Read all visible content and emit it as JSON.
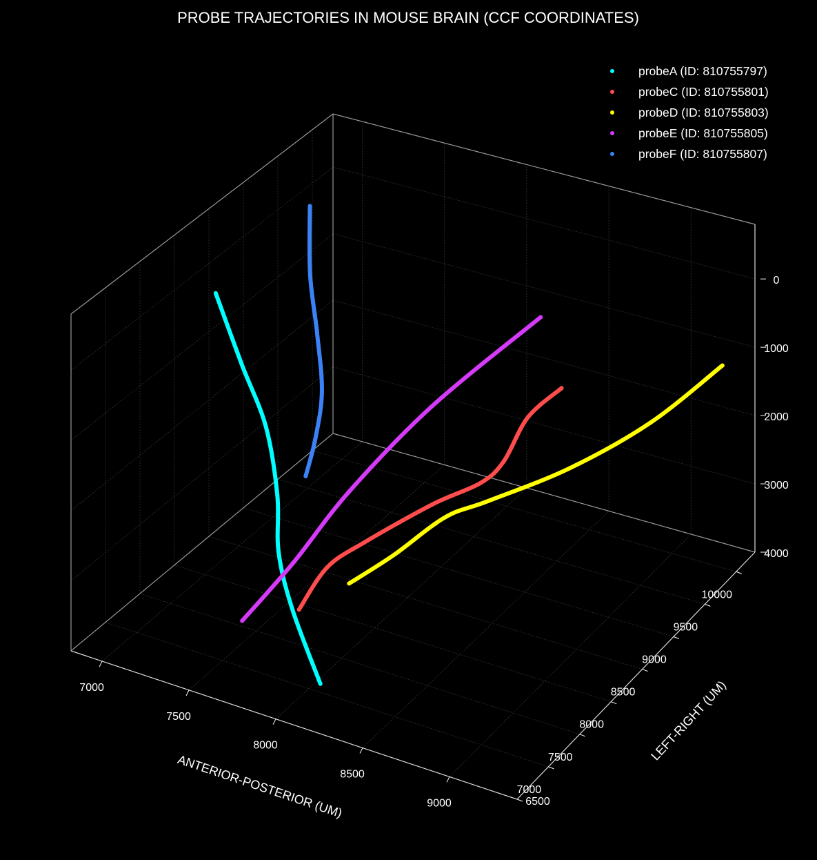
{
  "chart_data": {
    "type": "scatter3d",
    "title": "PROBE TRAJECTORIES IN MOUSE BRAIN (CCF COORDINATES)",
    "xlabel": "ANTERIOR-POSTERIOR (UM)",
    "ylabel": "LEFT-RIGHT (UM)",
    "zlabel": "",
    "xlim": [
      6821,
      9389
    ],
    "ylim": [
      6500,
      10300
    ],
    "zlim": [
      -800,
      4000
    ],
    "z_inverted": true,
    "grid": true,
    "legend_position": "top-right",
    "background": "#000000",
    "x_ticks": [
      "7000",
      "7500",
      "8000",
      "8500",
      "9000"
    ],
    "y_ticks": [
      "6500",
      "7000",
      "7500",
      "8000",
      "8500",
      "9000",
      "9500",
      "10000"
    ],
    "z_ticks": [
      "0",
      "1000",
      "2000",
      "3000",
      "4000"
    ],
    "series": [
      {
        "name": "probeA (ID: 810755797)",
        "color": "#00ffff",
        "points": [
          [
            7277,
            7466,
            -700
          ],
          [
            7479,
            7337,
            67
          ],
          [
            7628,
            7317,
            833
          ],
          [
            7751,
            7172,
            1600
          ],
          [
            7769,
            7144,
            2367
          ],
          [
            7840,
            7164,
            3133
          ],
          [
            8060,
            7018,
            3900
          ]
        ]
      },
      {
        "name": "probeC (ID: 810755801)",
        "color": "#ff4d4d",
        "points": [
          [
            8821,
            8737,
            600
          ],
          [
            8651,
            8657,
            1070
          ],
          [
            8598,
            8419,
            1540
          ],
          [
            8439,
            8475,
            2010
          ],
          [
            8171,
            8447,
            2480
          ],
          [
            7895,
            8116,
            2950
          ],
          [
            7694,
            8066,
            3420
          ],
          [
            7615,
            7845,
            3900
          ]
        ]
      },
      {
        "name": "probeD (ID: 810755803)",
        "color": "#ffff00",
        "points": [
          [
            9256,
            10130,
            1200
          ],
          [
            9045,
            9546,
            1650
          ],
          [
            8741,
            9069,
            2100
          ],
          [
            8379,
            8750,
            2550
          ],
          [
            8113,
            8777,
            3000
          ],
          [
            7916,
            8495,
            3450
          ],
          [
            7706,
            8363,
            3900
          ]
        ]
      },
      {
        "name": "probeE (ID: 810755805)",
        "color": "#d63af9",
        "points": [
          [
            8650,
            8858,
            -200
          ],
          [
            8260,
            8198,
            800
          ],
          [
            7973,
            7676,
            1800
          ],
          [
            7719,
            7498,
            2850
          ],
          [
            7425,
            7482,
            3900
          ]
        ]
      },
      {
        "name": "probeF (ID: 810755807)",
        "color": "#3b82f6",
        "points": [
          [
            7209,
            9022,
            -700
          ],
          [
            7398,
            8557,
            -200
          ],
          [
            7554,
            8268,
            300
          ],
          [
            7700,
            7971,
            800
          ],
          [
            7734,
            7788,
            1300
          ],
          [
            7708,
            7707,
            1800
          ]
        ]
      }
    ]
  }
}
